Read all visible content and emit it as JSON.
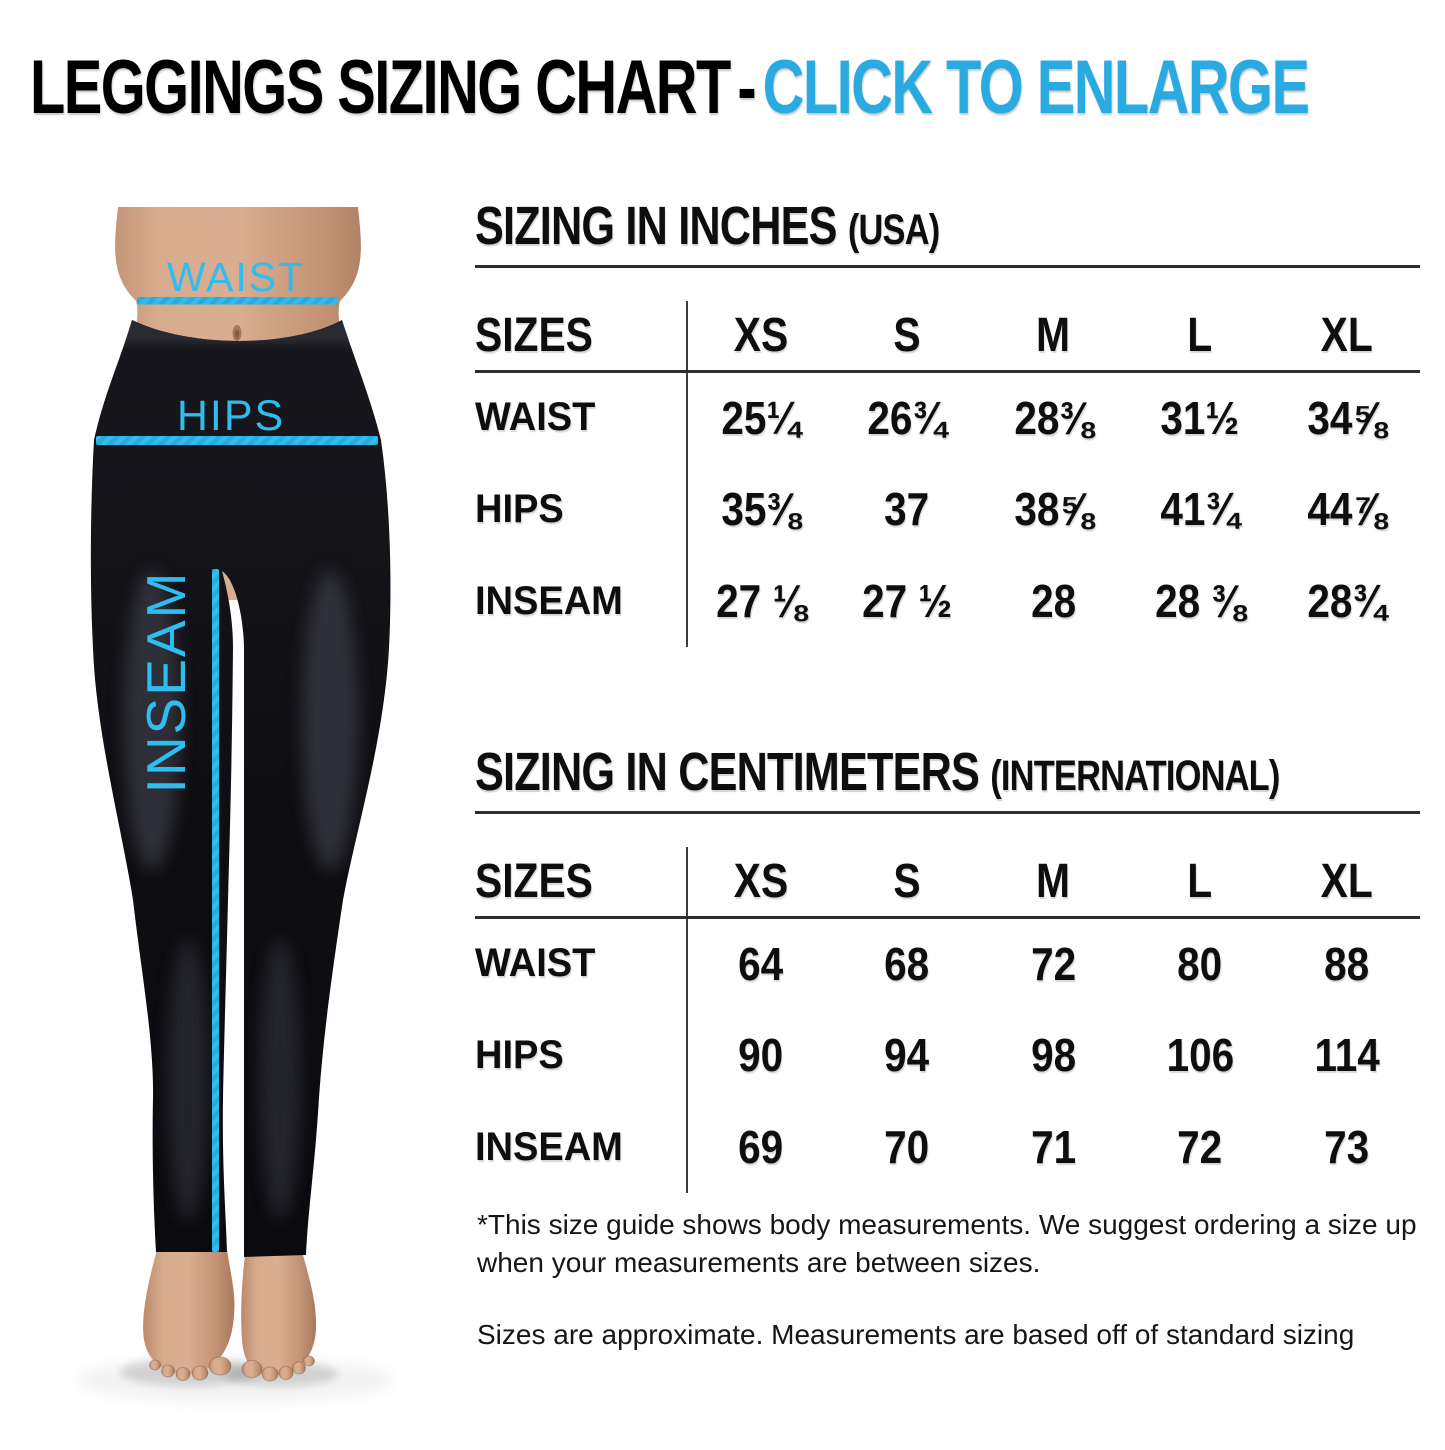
{
  "title": {
    "main": "LEGGINGS SIZING CHART",
    "separator": "-",
    "cta": "CLICK TO ENLARGE"
  },
  "figure": {
    "waist_label": "WAIST",
    "hips_label": "HIPS",
    "inseam_label": "INSEAM"
  },
  "tables": [
    {
      "id": "inches",
      "title": "SIZING IN INCHES",
      "region": "(USA)",
      "header": [
        "SIZES",
        "XS",
        "S",
        "M",
        "L",
        "XL"
      ],
      "rows": [
        {
          "label": "WAIST",
          "values": [
            "25¼",
            "26¾",
            "28⅜",
            "31½",
            "34⅝"
          ]
        },
        {
          "label": "HIPS",
          "values": [
            "35⅜",
            "37",
            "38⅝",
            "41¾",
            "44⅞"
          ]
        },
        {
          "label": "INSEAM",
          "values": [
            "27 ⅛",
            "27 ½",
            "28",
            "28 ⅜",
            "28¾"
          ]
        }
      ]
    },
    {
      "id": "centimeters",
      "title": "SIZING IN CENTIMETERS",
      "region": "(INTERNATIONAL)",
      "header": [
        "SIZES",
        "XS",
        "S",
        "M",
        "L",
        "XL"
      ],
      "rows": [
        {
          "label": "WAIST",
          "values": [
            "64",
            "68",
            "72",
            "80",
            "88"
          ]
        },
        {
          "label": "HIPS",
          "values": [
            "90",
            "94",
            "98",
            "106",
            "114"
          ]
        },
        {
          "label": "INSEAM",
          "values": [
            "69",
            "70",
            "71",
            "72",
            "73"
          ]
        }
      ]
    }
  ],
  "footnotes": [
    "*This size guide shows body measurements. We suggest ordering a size up when your measurements are between sizes.",
    "Sizes are approximate. Measurements are based off of standard sizing"
  ],
  "colors": {
    "accent_cyan": "#29abe2",
    "figure_cyan": "#2fbdf0",
    "rule_dark": "#2d2d2d"
  }
}
